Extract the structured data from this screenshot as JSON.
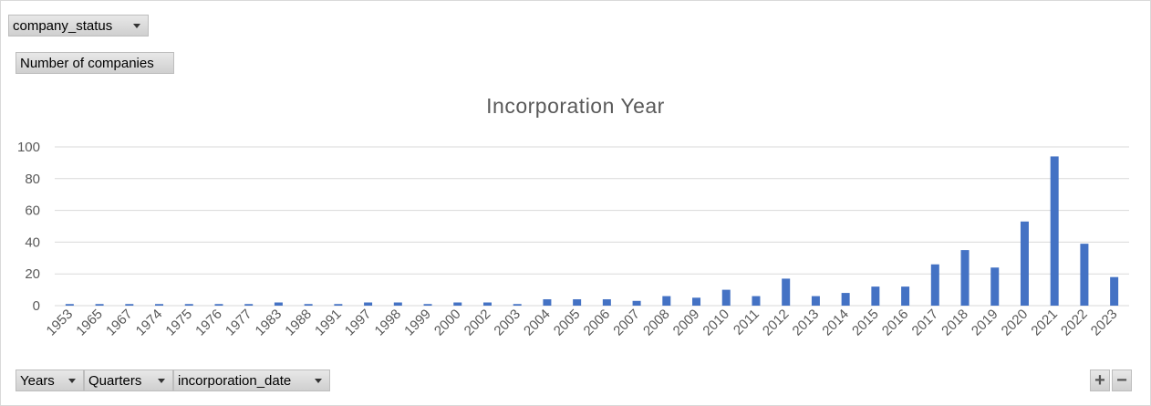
{
  "filters": {
    "report_filter": "company_status",
    "values_field": "Number of companies",
    "axis_fields": [
      "Years",
      "Quarters",
      "incorporation_date"
    ]
  },
  "zoom": {
    "expand_label": "+",
    "collapse_label": "−"
  },
  "colors": {
    "bar": "#4472c4",
    "grid": "#d9d9d9",
    "text": "#595959"
  },
  "chart_data": {
    "type": "bar",
    "title": "Incorporation Year",
    "xlabel": "",
    "ylabel": "",
    "ylim": [
      0,
      100
    ],
    "yticks": [
      0,
      20,
      40,
      60,
      80,
      100
    ],
    "grid": true,
    "categories": [
      "1953",
      "1965",
      "1967",
      "1974",
      "1975",
      "1976",
      "1977",
      "1983",
      "1988",
      "1991",
      "1997",
      "1998",
      "1999",
      "2000",
      "2002",
      "2003",
      "2004",
      "2005",
      "2006",
      "2007",
      "2008",
      "2009",
      "2010",
      "2011",
      "2012",
      "2013",
      "2014",
      "2015",
      "2016",
      "2017",
      "2018",
      "2019",
      "2020",
      "2021",
      "2022",
      "2023"
    ],
    "values": [
      1,
      1,
      1,
      1,
      1,
      1,
      1,
      2,
      1,
      1,
      2,
      2,
      1,
      2,
      2,
      1,
      4,
      4,
      4,
      3,
      6,
      5,
      10,
      6,
      17,
      6,
      8,
      12,
      12,
      26,
      35,
      24,
      53,
      94,
      39,
      18
    ]
  }
}
